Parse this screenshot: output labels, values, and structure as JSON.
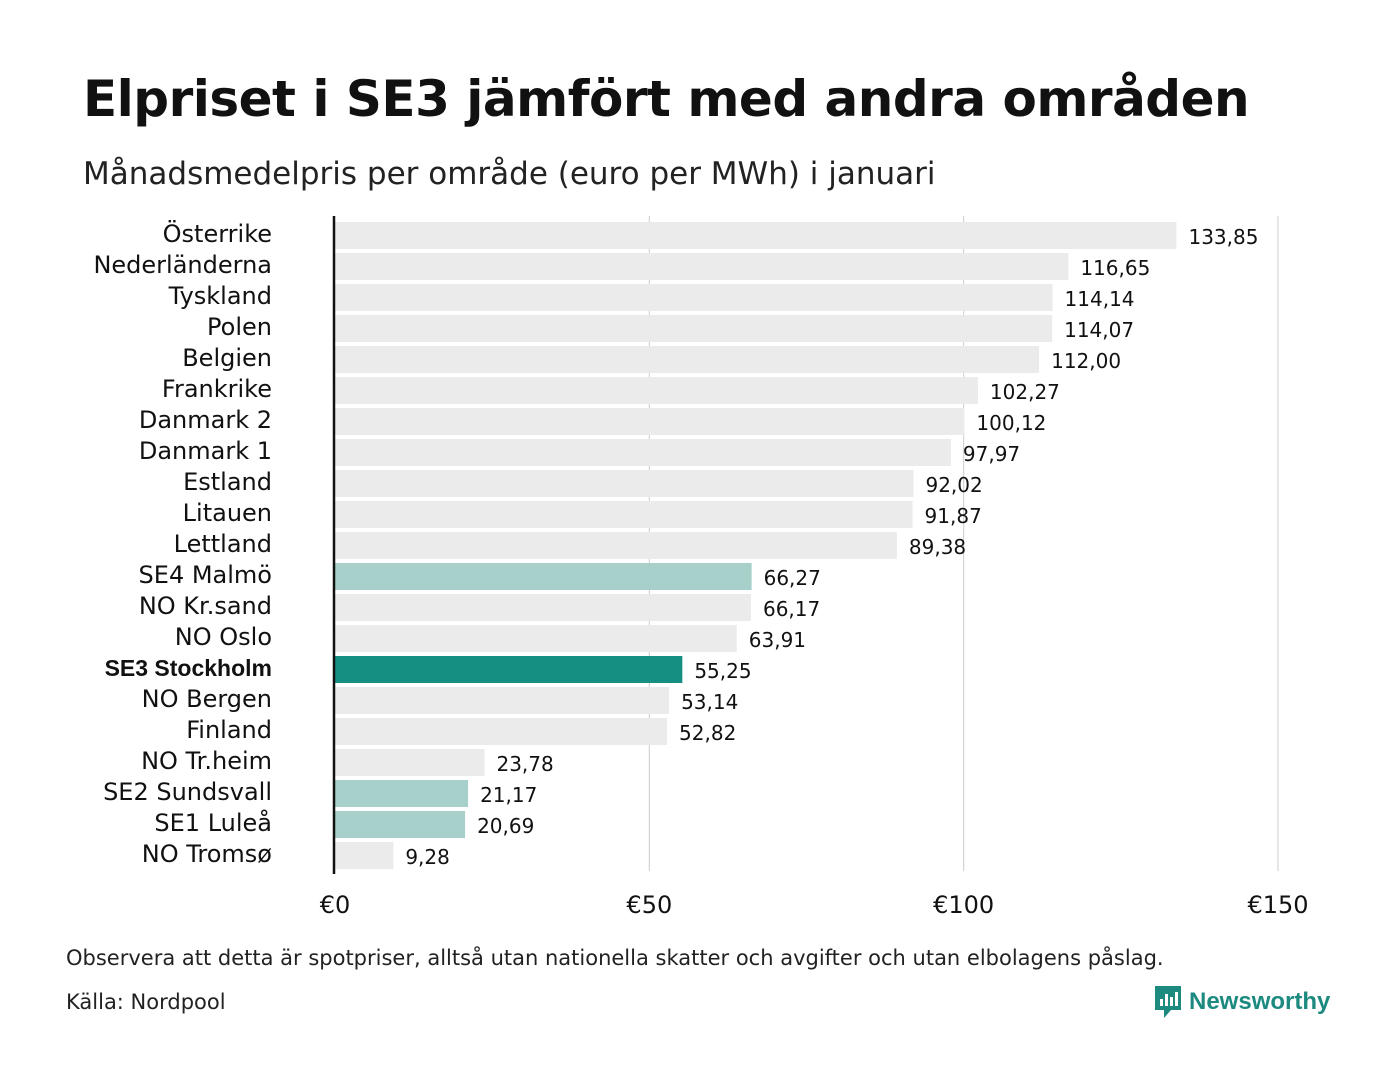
{
  "header": {
    "title": "Elpriset i SE3 jämfört med andra områden",
    "subtitle": "Månadsmedelpris per område (euro per MWh) i januari"
  },
  "footer": {
    "note": "Observera att detta är spotpriser, alltså utan nationella skatter och avgifter och utan elbolagens påslag.",
    "source": "Källa: Nordpool",
    "brand": "Newsworthy"
  },
  "colors": {
    "default_bar": "#ebebeb",
    "highlight_bar": "#168f83",
    "light_highlight_bar": "#a6d0c9",
    "grid": "#cccccc",
    "axis": "#111111"
  },
  "chart_data": {
    "type": "bar",
    "orientation": "horizontal",
    "title": "Elpriset i SE3 jämfört med andra områden",
    "subtitle": "Månadsmedelpris per område (euro per MWh) i januari",
    "xlim": [
      0,
      150
    ],
    "x_ticks": [
      0,
      50,
      100,
      150
    ],
    "x_tick_labels": [
      "€0",
      "€50",
      "€100",
      "€150"
    ],
    "grid": true,
    "categories": [
      "Österrike",
      "Nederländerna",
      "Tyskland",
      "Polen",
      "Belgien",
      "Frankrike",
      "Danmark  2",
      "Danmark  1",
      "Estland",
      "Litauen",
      "Lettland",
      "SE4  Malmö",
      "NO Kr.sand",
      "NO Oslo",
      "SE3 Stockholm",
      "NO Bergen",
      "Finland",
      "NO Tr.heim",
      "SE2  Sundsvall",
      "SE1  Luleå",
      "NO Tromsø"
    ],
    "values": [
      133.85,
      116.65,
      114.14,
      114.07,
      112.0,
      102.27,
      100.12,
      97.97,
      92.02,
      91.87,
      89.38,
      66.27,
      66.17,
      63.91,
      55.25,
      53.14,
      52.82,
      23.78,
      21.17,
      20.69,
      9.28
    ],
    "value_labels": [
      "133,85",
      "116,65",
      "114,14",
      "114,07",
      "112,00",
      "102,27",
      "100,12",
      "97,97",
      "92,02",
      "91,87",
      "89,38",
      "66,27",
      "66,17",
      "63,91",
      "55,25",
      "53,14",
      "52,82",
      "23,78",
      "21,17",
      "20,69",
      "9,28"
    ],
    "highlight": [
      "none",
      "none",
      "none",
      "none",
      "none",
      "none",
      "none",
      "none",
      "none",
      "none",
      "none",
      "light",
      "none",
      "none",
      "strong",
      "none",
      "none",
      "none",
      "light",
      "light",
      "none"
    ]
  }
}
